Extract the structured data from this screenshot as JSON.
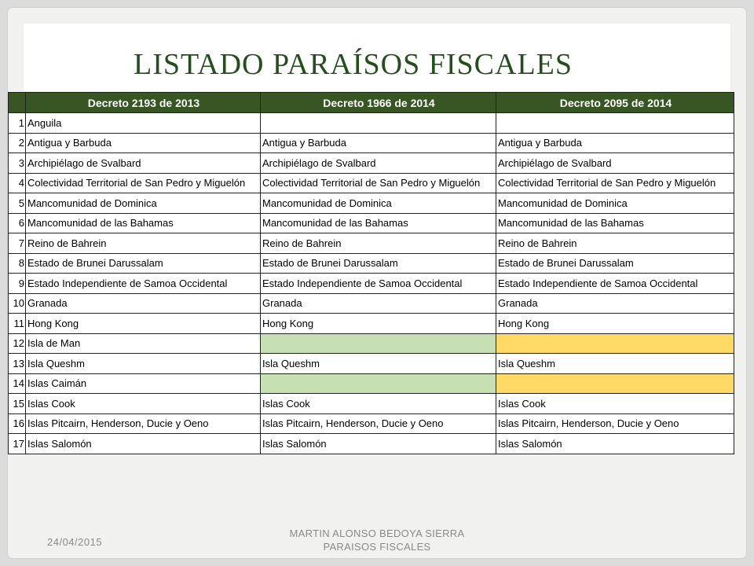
{
  "slide": {
    "title": "LISTADO PARAÍSOS FISCALES",
    "footer_date": "24/04/2015",
    "footer_line1": "MARTIN ALONSO BEDOYA SIERRA",
    "footer_line2": "PARAISOS FISCALES"
  },
  "colors": {
    "header_bg": "#375623",
    "title_text": "#254e1d",
    "highlight_green": "#c6e0b4",
    "highlight_yellow": "#ffd966"
  },
  "table": {
    "headers": [
      "",
      "Decreto 2193 de 2013",
      "Decreto 1966 de 2014",
      "Decreto 2095 de 2014"
    ],
    "rows": [
      {
        "n": "1",
        "a": "Anguila",
        "b": "",
        "c": "",
        "b_fill": "",
        "c_fill": ""
      },
      {
        "n": "2",
        "a": "Antigua y Barbuda",
        "b": "Antigua y Barbuda",
        "c": "Antigua y Barbuda",
        "b_fill": "",
        "c_fill": ""
      },
      {
        "n": "3",
        "a": "Archipiélago de Svalbard",
        "b": "Archipiélago de Svalbard",
        "c": "Archipiélago de Svalbard",
        "b_fill": "",
        "c_fill": ""
      },
      {
        "n": "4",
        "a": "Colectividad Territorial de San Pedro y Miguelón",
        "b": "Colectividad Territorial de San Pedro y Miguelón",
        "c": "Colectividad Territorial de San Pedro y Miguelón",
        "b_fill": "",
        "c_fill": ""
      },
      {
        "n": "5",
        "a": "Mancomunidad de Dominica",
        "b": "Mancomunidad de Dominica",
        "c": "Mancomunidad de Dominica",
        "b_fill": "",
        "c_fill": ""
      },
      {
        "n": "6",
        "a": "Mancomunidad de las Bahamas",
        "b": "Mancomunidad de las Bahamas",
        "c": "Mancomunidad de las Bahamas",
        "b_fill": "",
        "c_fill": ""
      },
      {
        "n": "7",
        "a": "Reino de Bahrein",
        "b": "Reino de Bahrein",
        "c": "Reino de Bahrein",
        "b_fill": "",
        "c_fill": ""
      },
      {
        "n": "8",
        "a": "Estado de Brunei Darussalam",
        "b": "Estado de Brunei Darussalam",
        "c": "Estado de Brunei Darussalam",
        "b_fill": "",
        "c_fill": ""
      },
      {
        "n": "9",
        "a": "Estado Independiente de Samoa Occidental",
        "b": "Estado Independiente de Samoa Occidental",
        "c": "Estado Independiente de Samoa Occidental",
        "b_fill": "",
        "c_fill": ""
      },
      {
        "n": "10",
        "a": "Granada",
        "b": "Granada",
        "c": "Granada",
        "b_fill": "",
        "c_fill": ""
      },
      {
        "n": "11",
        "a": "Hong Kong",
        "b": " Hong Kong",
        "c": " Hong Kong",
        "b_fill": "",
        "c_fill": ""
      },
      {
        "n": "12",
        "a": "Isla de Man",
        "b": "",
        "c": "",
        "b_fill": "green",
        "c_fill": "yellow"
      },
      {
        "n": "13",
        "a": "Isla Queshm",
        "b": "Isla Queshm",
        "c": "Isla Queshm",
        "b_fill": "",
        "c_fill": ""
      },
      {
        "n": "14",
        "a": "Islas Caimán",
        "b": "",
        "c": "",
        "b_fill": "green",
        "c_fill": "yellow"
      },
      {
        "n": "15",
        "a": "Islas Cook",
        "b": "Islas Cook",
        "c": "Islas Cook",
        "b_fill": "",
        "c_fill": ""
      },
      {
        "n": "16",
        "a": "Islas Pitcairn, Henderson, Ducie y Oeno",
        "b": "Islas Pitcairn, Henderson, Ducie y Oeno",
        "c": "Islas Pitcairn, Henderson, Ducie y Oeno",
        "b_fill": "",
        "c_fill": ""
      },
      {
        "n": "17",
        "a": "Islas Salomón",
        "b": "Islas Salomón",
        "c": "Islas Salomón",
        "b_fill": "",
        "c_fill": ""
      }
    ]
  }
}
